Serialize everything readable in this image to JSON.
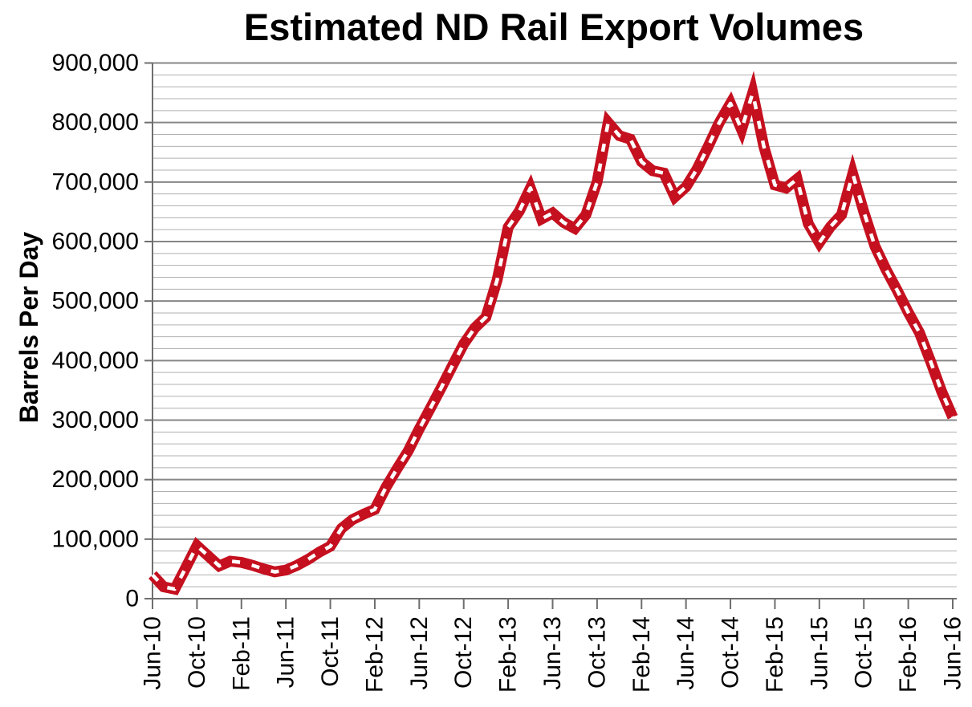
{
  "title": "Estimated ND Rail Export Volumes",
  "y_axis": {
    "label": "Barrels Per Day",
    "min": 0,
    "max": 900000,
    "major_step": 100000,
    "minor_step": 20000,
    "tick_labels": [
      "0",
      "100,000",
      "200,000",
      "300,000",
      "400,000",
      "500,000",
      "600,000",
      "700,000",
      "800,000",
      "900,000"
    ]
  },
  "x_axis": {
    "months_per_tick": 4,
    "tick_labels": [
      "Jun-10",
      "Oct-10",
      "Feb-11",
      "Jun-11",
      "Oct-11",
      "Feb-12",
      "Jun-12",
      "Oct-12",
      "Feb-13",
      "Jun-13",
      "Oct-13",
      "Feb-14",
      "Jun-14",
      "Oct-14",
      "Feb-15",
      "Jun-15",
      "Oct-15",
      "Feb-16",
      "Jun-16"
    ]
  },
  "chart_data": {
    "type": "line",
    "title": "Estimated ND Rail Export Volumes",
    "xlabel": "",
    "ylabel": "Barrels Per Day",
    "ylim": [
      0,
      900000
    ],
    "grid": "horizontal, minor 20000 / major 100000",
    "legend": "none",
    "line_style": {
      "color": "#c5101f",
      "width": 13.5,
      "overlay": "white center dashes",
      "overlay_color": "#ffffff"
    },
    "x": [
      "Jun-10",
      "Jul-10",
      "Aug-10",
      "Sep-10",
      "Oct-10",
      "Nov-10",
      "Dec-10",
      "Jan-11",
      "Feb-11",
      "Mar-11",
      "Apr-11",
      "May-11",
      "Jun-11",
      "Jul-11",
      "Aug-11",
      "Sep-11",
      "Oct-11",
      "Nov-11",
      "Dec-11",
      "Jan-12",
      "Feb-12",
      "Mar-12",
      "Apr-12",
      "May-12",
      "Jun-12",
      "Jul-12",
      "Aug-12",
      "Sep-12",
      "Oct-12",
      "Nov-12",
      "Dec-12",
      "Jan-13",
      "Feb-13",
      "Mar-13",
      "Apr-13",
      "May-13",
      "Jun-13",
      "Jul-13",
      "Aug-13",
      "Sep-13",
      "Oct-13",
      "Nov-13",
      "Dec-13",
      "Jan-14",
      "Feb-14",
      "Mar-14",
      "Apr-14",
      "May-14",
      "Jun-14",
      "Jul-14",
      "Aug-14",
      "Sep-14",
      "Oct-14",
      "Nov-14",
      "Dec-14",
      "Jan-15",
      "Feb-15",
      "Mar-15",
      "Apr-15",
      "May-15",
      "Jun-15",
      "Jul-15",
      "Aug-15",
      "Sep-15",
      "Oct-15",
      "Nov-15",
      "Dec-15",
      "Jan-16",
      "Feb-16",
      "Mar-16",
      "Apr-16",
      "May-16",
      "Jun-16"
    ],
    "values": [
      40000,
      20000,
      16000,
      52000,
      89000,
      72000,
      55000,
      63000,
      61000,
      56000,
      50000,
      45000,
      48000,
      56000,
      66000,
      78000,
      88000,
      118000,
      133000,
      142000,
      150000,
      187000,
      218000,
      248000,
      285000,
      320000,
      355000,
      392000,
      428000,
      455000,
      473000,
      535000,
      624000,
      651000,
      690000,
      638000,
      648000,
      632000,
      622000,
      645000,
      700000,
      800000,
      778000,
      772000,
      734000,
      719000,
      715000,
      675000,
      692000,
      722000,
      760000,
      800000,
      832000,
      788000,
      850000,
      760000,
      695000,
      690000,
      705000,
      630000,
      598000,
      625000,
      645000,
      714000,
      650000,
      592000,
      553000,
      518000,
      481000,
      447000,
      399000,
      348000,
      305000
    ]
  },
  "colors": {
    "line": "#c5101f",
    "line_dash_overlay": "#ffffff",
    "grid_minor": "#b0b0b0",
    "grid_major": "#868686",
    "axis": "#6e6e6e",
    "text": "#000000",
    "background": "#ffffff"
  }
}
